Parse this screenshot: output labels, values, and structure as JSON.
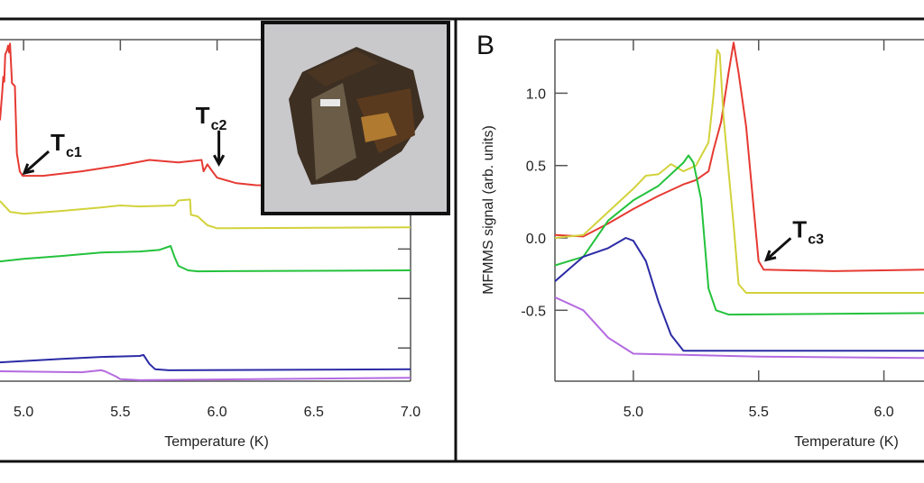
{
  "chart_data": [
    {
      "type": "line",
      "panel_label": "",
      "xlabel": "Temperature (K)",
      "ylabel": "",
      "xlim": [
        4.878,
        7.0
      ],
      "ylim": [
        0,
        6.9
      ],
      "x_ticks": [
        "5.0",
        "5.5",
        "6.0",
        "6.5",
        "7.0"
      ],
      "x_tick_values": [
        5.0,
        5.5,
        6.0,
        6.5,
        7.0
      ],
      "y_tick_values": [
        0.67,
        1.67,
        2.67,
        3.67,
        4.67,
        5.67,
        6.67
      ],
      "grid": false,
      "annotations": [
        {
          "text": "T",
          "sub": "c1",
          "x": 4.99,
          "y": 4.15
        },
        {
          "text": "T",
          "sub": "c2",
          "x": 6.0,
          "y": 4.3
        }
      ],
      "series": [
        {
          "color": "#e63a32",
          "points": [
            [
              4.878,
              5.27
            ],
            [
              4.89,
              5.87
            ],
            [
              4.895,
              6.15
            ],
            [
              4.9,
              6.05
            ],
            [
              4.905,
              6.6
            ],
            [
              4.915,
              6.69
            ],
            [
              4.92,
              6.78
            ],
            [
              4.925,
              6.64
            ],
            [
              4.93,
              6.82
            ],
            [
              4.94,
              6.02
            ],
            [
              4.955,
              5.96
            ],
            [
              4.965,
              4.6
            ],
            [
              4.98,
              4.24
            ],
            [
              4.995,
              4.15
            ],
            [
              5.1,
              4.15
            ],
            [
              5.3,
              4.24
            ],
            [
              5.5,
              4.36
            ],
            [
              5.65,
              4.47
            ],
            [
              5.8,
              4.42
            ],
            [
              5.92,
              4.47
            ],
            [
              5.93,
              4.24
            ],
            [
              5.95,
              4.38
            ],
            [
              5.97,
              4.27
            ],
            [
              6.0,
              4.11
            ],
            [
              6.1,
              4.0
            ],
            [
              6.2,
              3.96
            ],
            [
              6.3,
              3.95
            ]
          ]
        },
        {
          "color": "#d2d23c",
          "points": [
            [
              4.878,
              3.64
            ],
            [
              4.93,
              3.42
            ],
            [
              5.0,
              3.38
            ],
            [
              5.2,
              3.44
            ],
            [
              5.4,
              3.51
            ],
            [
              5.5,
              3.55
            ],
            [
              5.6,
              3.53
            ],
            [
              5.78,
              3.55
            ],
            [
              5.8,
              3.65
            ],
            [
              5.86,
              3.67
            ],
            [
              5.865,
              3.36
            ],
            [
              5.9,
              3.33
            ],
            [
              5.95,
              3.15
            ],
            [
              6.0,
              3.09
            ],
            [
              7.0,
              3.11
            ]
          ]
        },
        {
          "color": "#24c23c",
          "points": [
            [
              4.878,
              2.42
            ],
            [
              5.0,
              2.47
            ],
            [
              5.2,
              2.53
            ],
            [
              5.4,
              2.6
            ],
            [
              5.6,
              2.62
            ],
            [
              5.7,
              2.65
            ],
            [
              5.76,
              2.73
            ],
            [
              5.78,
              2.51
            ],
            [
              5.8,
              2.33
            ],
            [
              5.85,
              2.24
            ],
            [
              5.9,
              2.22
            ],
            [
              7.0,
              2.24
            ]
          ]
        },
        {
          "color": "#2b2ba6",
          "points": [
            [
              4.878,
              0.38
            ],
            [
              5.2,
              0.45
            ],
            [
              5.4,
              0.49
            ],
            [
              5.6,
              0.51
            ],
            [
              5.62,
              0.53
            ],
            [
              5.65,
              0.35
            ],
            [
              5.68,
              0.24
            ],
            [
              5.75,
              0.22
            ],
            [
              7.0,
              0.24
            ]
          ]
        },
        {
          "color": "#b46ae0",
          "points": [
            [
              4.878,
              0.2
            ],
            [
              5.3,
              0.18
            ],
            [
              5.4,
              0.22
            ],
            [
              5.42,
              0.2
            ],
            [
              5.48,
              0.09
            ],
            [
              5.5,
              0.04
            ],
            [
              5.6,
              0.02
            ],
            [
              7.0,
              0.07
            ]
          ]
        }
      ]
    },
    {
      "type": "line",
      "panel_label": "B",
      "xlabel": "Temperature (K)",
      "ylabel": "MFMMS signal (arb. units)",
      "xlim": [
        4.687,
        6.16
      ],
      "ylim": [
        -0.99,
        1.37
      ],
      "x_ticks": [
        "5.0",
        "5.5",
        "6.0"
      ],
      "x_tick_values": [
        5.0,
        5.5,
        6.0
      ],
      "y_ticks": [
        "1.0",
        "0.5",
        "0.0",
        "-0.5"
      ],
      "y_tick_values": [
        1.0,
        0.5,
        0.0,
        -0.5
      ],
      "grid": false,
      "annotations": [
        {
          "text": "T",
          "sub": "c3",
          "x": 5.52,
          "y": -0.17
        }
      ],
      "series": [
        {
          "color": "#e63a32",
          "points": [
            [
              4.687,
              0.02
            ],
            [
              4.8,
              0.01
            ],
            [
              4.9,
              0.1
            ],
            [
              5.0,
              0.2
            ],
            [
              5.1,
              0.29
            ],
            [
              5.2,
              0.37
            ],
            [
              5.25,
              0.4
            ],
            [
              5.3,
              0.46
            ],
            [
              5.32,
              0.61
            ],
            [
              5.35,
              0.8
            ],
            [
              5.38,
              1.14
            ],
            [
              5.4,
              1.35
            ],
            [
              5.42,
              1.14
            ],
            [
              5.45,
              0.77
            ],
            [
              5.49,
              0.02
            ],
            [
              5.5,
              -0.16
            ],
            [
              5.52,
              -0.22
            ],
            [
              5.8,
              -0.23
            ],
            [
              6.16,
              -0.22
            ]
          ]
        },
        {
          "color": "#d2d23c",
          "points": [
            [
              4.687,
              0.0
            ],
            [
              4.8,
              0.02
            ],
            [
              4.9,
              0.18
            ],
            [
              5.0,
              0.34
            ],
            [
              5.05,
              0.43
            ],
            [
              5.1,
              0.44
            ],
            [
              5.15,
              0.51
            ],
            [
              5.2,
              0.46
            ],
            [
              5.25,
              0.5
            ],
            [
              5.3,
              0.66
            ],
            [
              5.32,
              0.99
            ],
            [
              5.335,
              1.3
            ],
            [
              5.345,
              1.27
            ],
            [
              5.36,
              0.83
            ],
            [
              5.4,
              0.09
            ],
            [
              5.42,
              -0.32
            ],
            [
              5.45,
              -0.38
            ],
            [
              6.16,
              -0.38
            ]
          ]
        },
        {
          "color": "#24c23c",
          "points": [
            [
              4.687,
              -0.19
            ],
            [
              4.8,
              -0.13
            ],
            [
              4.9,
              0.12
            ],
            [
              5.0,
              0.26
            ],
            [
              5.1,
              0.36
            ],
            [
              5.2,
              0.52
            ],
            [
              5.22,
              0.57
            ],
            [
              5.24,
              0.52
            ],
            [
              5.27,
              0.27
            ],
            [
              5.3,
              -0.35
            ],
            [
              5.33,
              -0.5
            ],
            [
              5.38,
              -0.53
            ],
            [
              6.16,
              -0.52
            ]
          ]
        },
        {
          "color": "#2b2ba6",
          "points": [
            [
              4.687,
              -0.3
            ],
            [
              4.8,
              -0.13
            ],
            [
              4.9,
              -0.07
            ],
            [
              4.97,
              0.0
            ],
            [
              5.0,
              -0.02
            ],
            [
              5.05,
              -0.16
            ],
            [
              5.1,
              -0.44
            ],
            [
              5.15,
              -0.67
            ],
            [
              5.2,
              -0.78
            ],
            [
              6.16,
              -0.78
            ]
          ]
        },
        {
          "color": "#b46ae0",
          "points": [
            [
              4.687,
              -0.41
            ],
            [
              4.8,
              -0.5
            ],
            [
              4.9,
              -0.69
            ],
            [
              5.0,
              -0.8
            ],
            [
              5.5,
              -0.82
            ],
            [
              6.16,
              -0.83
            ]
          ]
        }
      ]
    }
  ]
}
